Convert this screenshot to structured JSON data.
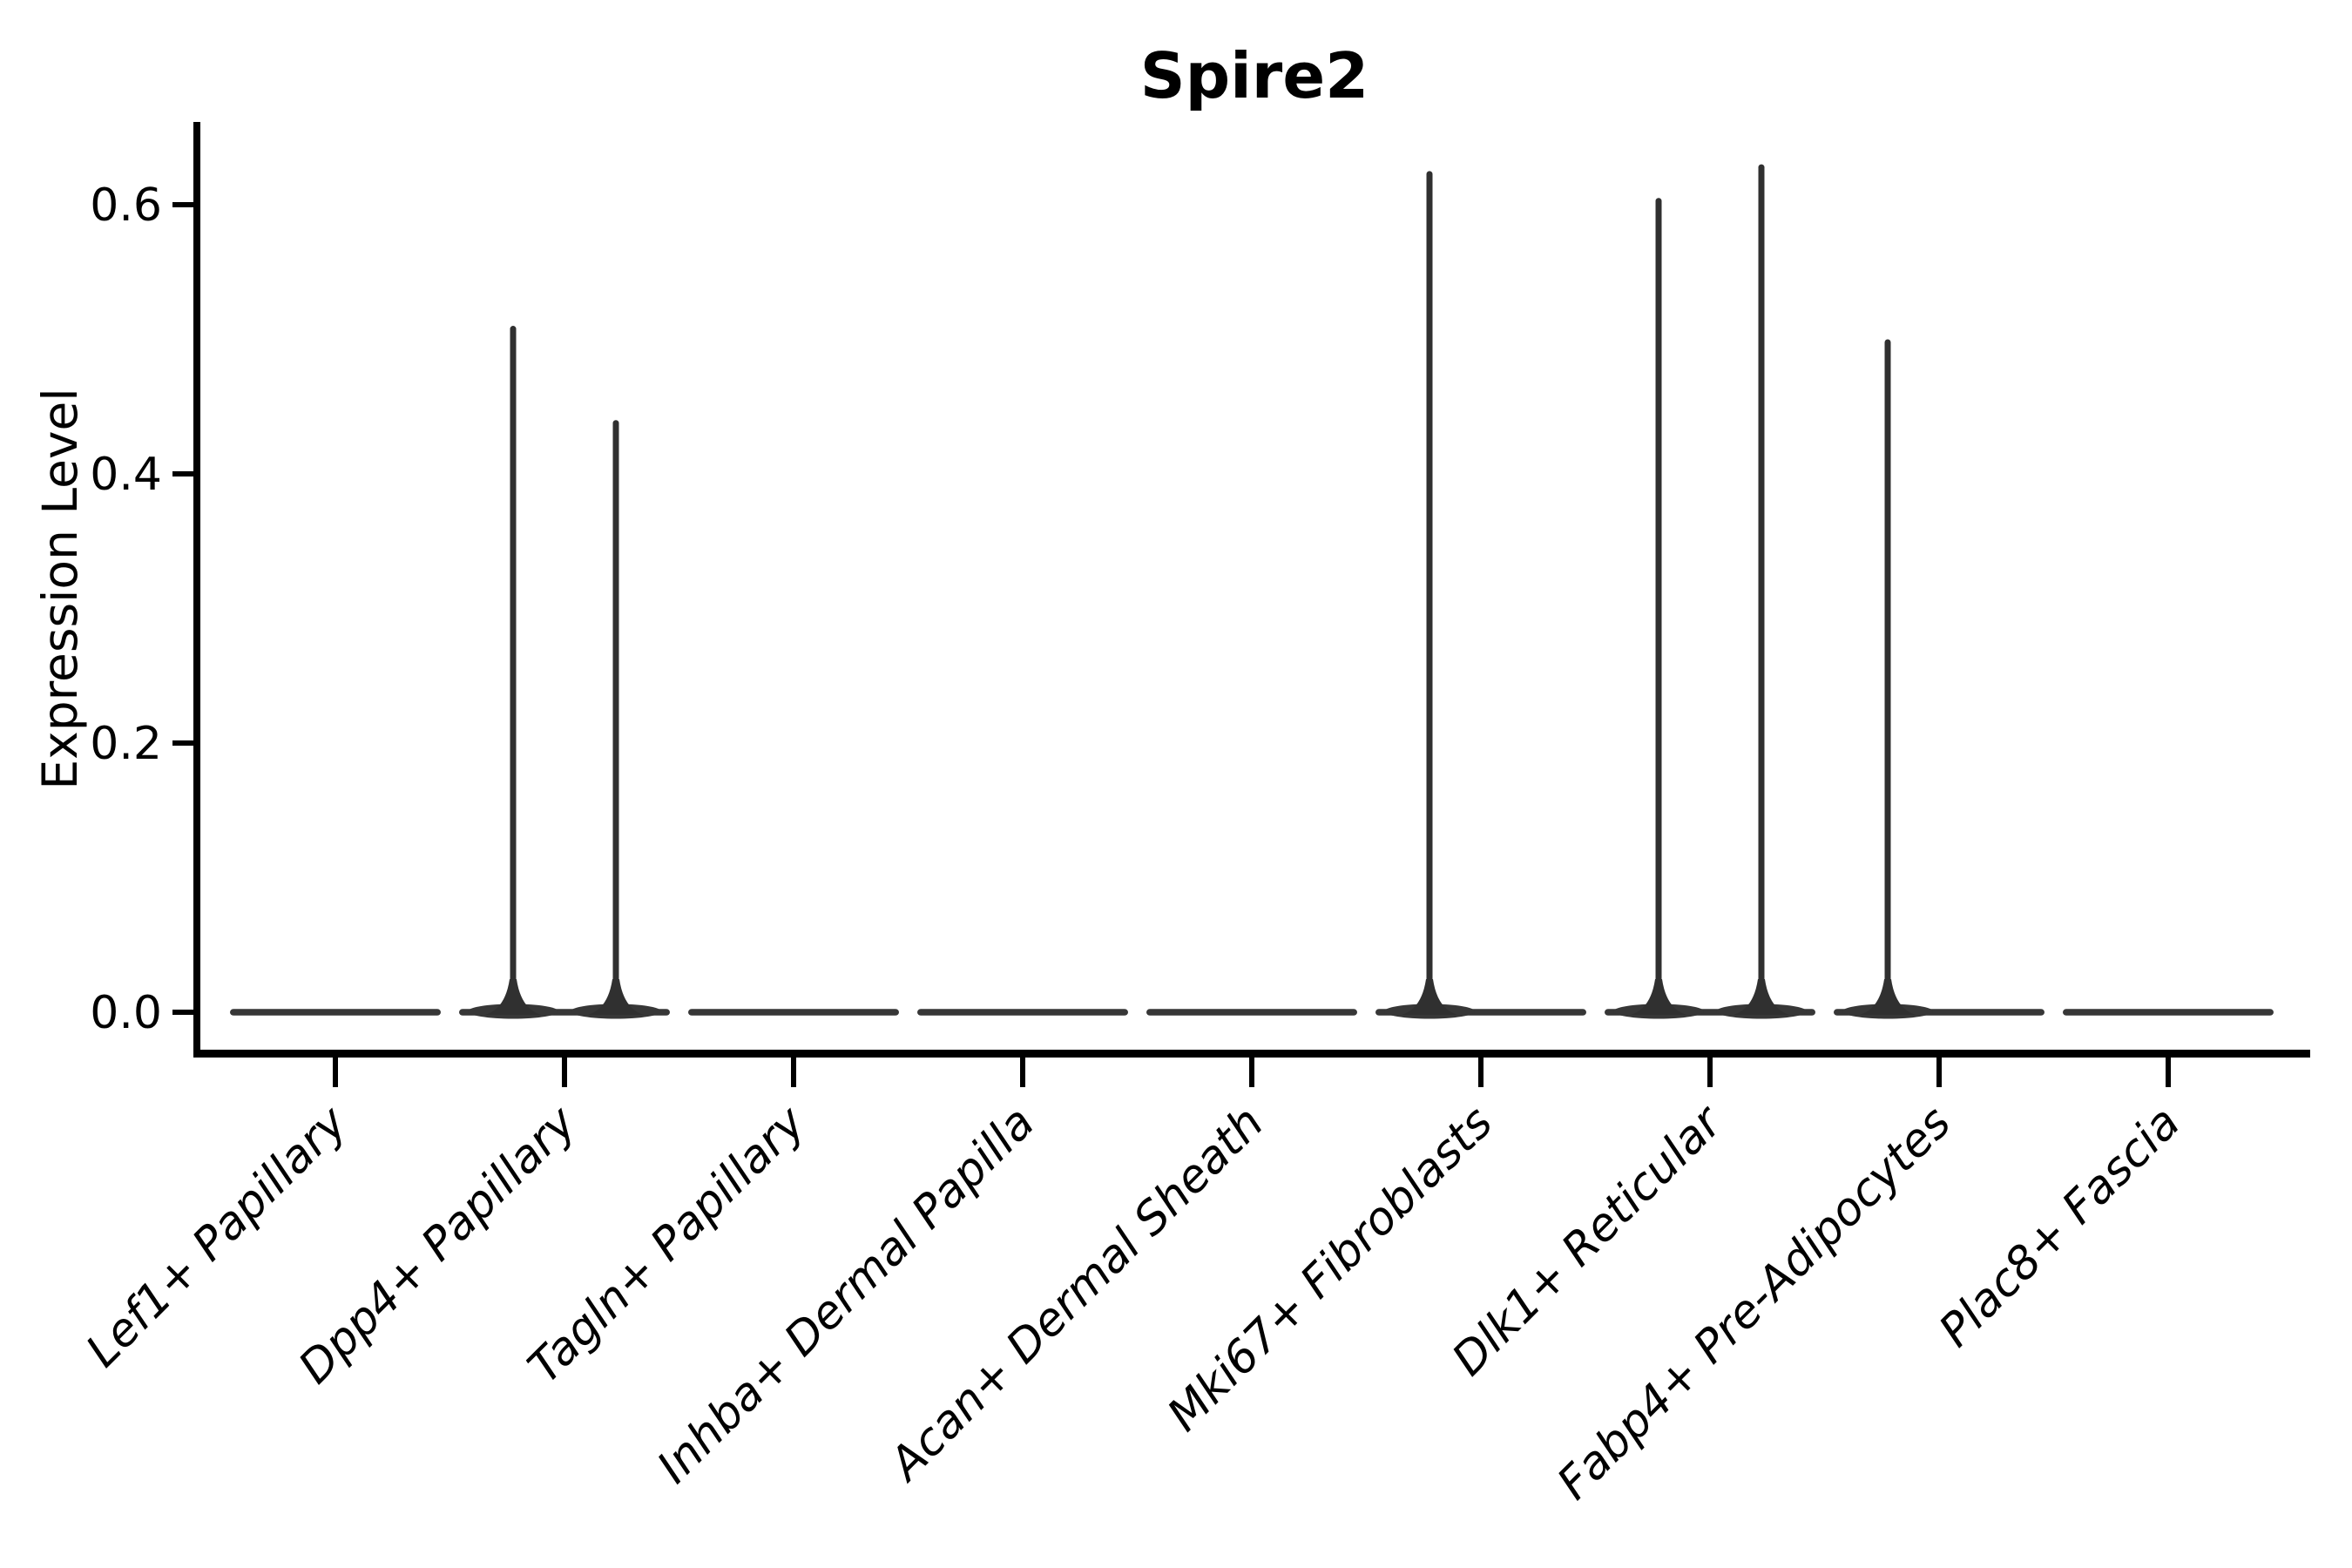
{
  "figure": {
    "title": "Spire2",
    "ylabel": "Expression Level"
  },
  "chart_data": {
    "type": "violin",
    "title": "Spire2",
    "xlabel": "",
    "ylabel": "Expression Level",
    "ylim": [
      -0.03,
      0.66
    ],
    "grid": false,
    "legend": null,
    "yticks": [
      {
        "label": "0.0",
        "value": 0.0
      },
      {
        "label": "0.2",
        "value": 0.2
      },
      {
        "label": "0.4",
        "value": 0.4
      },
      {
        "label": "0.6",
        "value": 0.6
      }
    ],
    "categories": [
      "Lef1+ Papillary",
      "Dpp4+ Papillary",
      "Tagln+ Papillary",
      "Inhba+ Dermal Papilla",
      "Acan+ Dermal Sheath",
      "Mki67+ Fibroblasts",
      "Dlk1+ Reticular",
      "Fabp4+ Pre-Adipocytes",
      "Plac8+ Fascia"
    ],
    "violins": [
      {
        "category": "Lef1+ Papillary",
        "bulk_at": 0,
        "spikes": []
      },
      {
        "category": "Dpp4+ Papillary",
        "bulk_at": 0,
        "spikes": [
          {
            "pos": "left",
            "max": 0.51
          },
          {
            "pos": "right",
            "max": 0.44
          }
        ]
      },
      {
        "category": "Tagln+ Papillary",
        "bulk_at": 0,
        "spikes": []
      },
      {
        "category": "Inhba+ Dermal Papilla",
        "bulk_at": 0,
        "spikes": []
      },
      {
        "category": "Acan+ Dermal Sheath",
        "bulk_at": 0,
        "spikes": []
      },
      {
        "category": "Mki67+ Fibroblasts",
        "bulk_at": 0,
        "spikes": [
          {
            "pos": "left",
            "max": 0.625
          }
        ]
      },
      {
        "category": "Dlk1+ Reticular",
        "bulk_at": 0,
        "spikes": [
          {
            "pos": "left",
            "max": 0.605
          },
          {
            "pos": "right",
            "max": 0.63
          }
        ]
      },
      {
        "category": "Fabp4+ Pre-Adipocytes",
        "bulk_at": 0,
        "spikes": [
          {
            "pos": "left",
            "max": 0.5
          }
        ]
      },
      {
        "category": "Plac8+ Fascia",
        "bulk_at": 0,
        "spikes": []
      }
    ],
    "colors": {
      "violin_fill": "#373737",
      "spike_fill": "#303030",
      "axis": "#000000",
      "text": "#000000",
      "background": "#ffffff"
    }
  }
}
